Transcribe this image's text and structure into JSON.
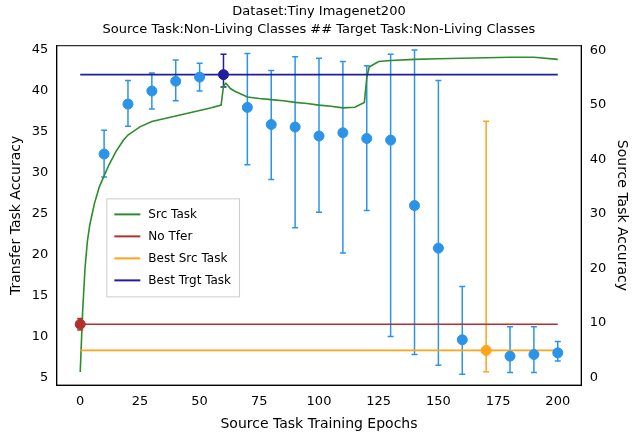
{
  "chart_data": {
    "type": "line",
    "title": "Dataset:Tiny Imagenet200",
    "subtitle": "Source Task:Non-Living Classes ## Target Task:Non-Living Classes",
    "x_label": "Source Task Training Epochs",
    "y_label": "Transfer Task Accuracy",
    "y2_label": "Source Task Accuracy",
    "xlim": [
      -10,
      210
    ],
    "xticks": [
      0,
      25,
      50,
      75,
      100,
      125,
      150,
      175,
      200
    ],
    "ylim": [
      4,
      45.6
    ],
    "yticks": [
      5,
      10,
      15,
      20,
      25,
      30,
      35,
      40,
      45
    ],
    "y2lim": [
      -1.5,
      61
    ],
    "y2ticks": [
      0,
      10,
      20,
      30,
      40,
      50,
      60
    ],
    "grid": false,
    "legend": "center left",
    "series": [
      {
        "name": "Src Task",
        "color": "#2e8b2e",
        "type": "line",
        "axis": "y2",
        "line_style": "solid",
        "x": [
          0,
          1,
          2,
          3,
          4,
          5,
          6,
          8,
          10,
          12,
          15,
          18,
          20,
          25,
          30,
          35,
          40,
          45,
          50,
          55,
          59,
          60,
          61,
          63,
          65,
          70,
          75,
          80,
          85,
          90,
          95,
          100,
          105,
          110,
          115,
          119,
          120,
          121,
          123,
          125,
          130,
          140,
          150,
          160,
          170,
          180,
          190,
          200
        ],
        "values": [
          1.0,
          12,
          20,
          25,
          28,
          30,
          32,
          35,
          37,
          39,
          41.5,
          43.5,
          44.5,
          46,
          47,
          47.5,
          48,
          48.5,
          49,
          49.5,
          50,
          53.5,
          54,
          53,
          52.5,
          51.5,
          51.2,
          51,
          50.8,
          50.5,
          50.3,
          50,
          49.8,
          49.5,
          49.6,
          50.5,
          55,
          57,
          57.5,
          58,
          58.2,
          58.4,
          58.5,
          58.6,
          58.7,
          58.8,
          58.8,
          58.4
        ]
      },
      {
        "name": "No Tfer",
        "color": "#b2302f",
        "type": "line",
        "line_style": "solid",
        "marker": "circle",
        "x": [
          0,
          200
        ],
        "values": [
          11.5,
          11.5
        ],
        "point": {
          "x": 0,
          "value": 11.5,
          "lower": 10.8,
          "upper": 12.2
        }
      },
      {
        "name": "Best Src Task",
        "color": "#ffa31a",
        "type": "line",
        "line_style": "solid",
        "marker": "circle",
        "x": [
          0,
          200
        ],
        "values": [
          8.3,
          8.3
        ],
        "point": {
          "x": 170,
          "value": 8.3,
          "lower": 5.7,
          "upper": 36.3
        }
      },
      {
        "name": "Best Trgt Task",
        "color": "#1f1f9e",
        "type": "line",
        "line_style": "solid",
        "marker": "circle",
        "x": [
          0,
          200
        ],
        "values": [
          42,
          42
        ],
        "point": {
          "x": 60,
          "value": 42,
          "lower": 40.5,
          "upper": 44.5
        }
      }
    ],
    "points": {
      "type": "scatter",
      "color": "#2b94e8",
      "marker": "circle",
      "x": [
        10,
        20,
        30,
        40,
        50,
        70,
        80,
        90,
        100,
        110,
        120,
        130,
        140,
        150,
        160,
        180,
        190,
        200
      ],
      "values": [
        32.3,
        38.4,
        40.0,
        41.2,
        41.7,
        38.0,
        35.9,
        35.6,
        34.5,
        34.9,
        34.2,
        34.0,
        26.0,
        20.8,
        9.6,
        7.6,
        7.8,
        8.0
      ],
      "lower": [
        29.5,
        35.7,
        37.8,
        38.8,
        40.0,
        31.0,
        29.2,
        23.3,
        25.2,
        20.2,
        25.4,
        10.0,
        7.8,
        6.5,
        5.4,
        5.6,
        5.6,
        7.0
      ],
      "upper": [
        35.2,
        41.3,
        42.2,
        43.8,
        43.4,
        44.6,
        42.5,
        44.2,
        44.0,
        43.6,
        43.1,
        44.5,
        45.0,
        41.3,
        16.1,
        11.2,
        11.2,
        9.4
      ]
    }
  }
}
